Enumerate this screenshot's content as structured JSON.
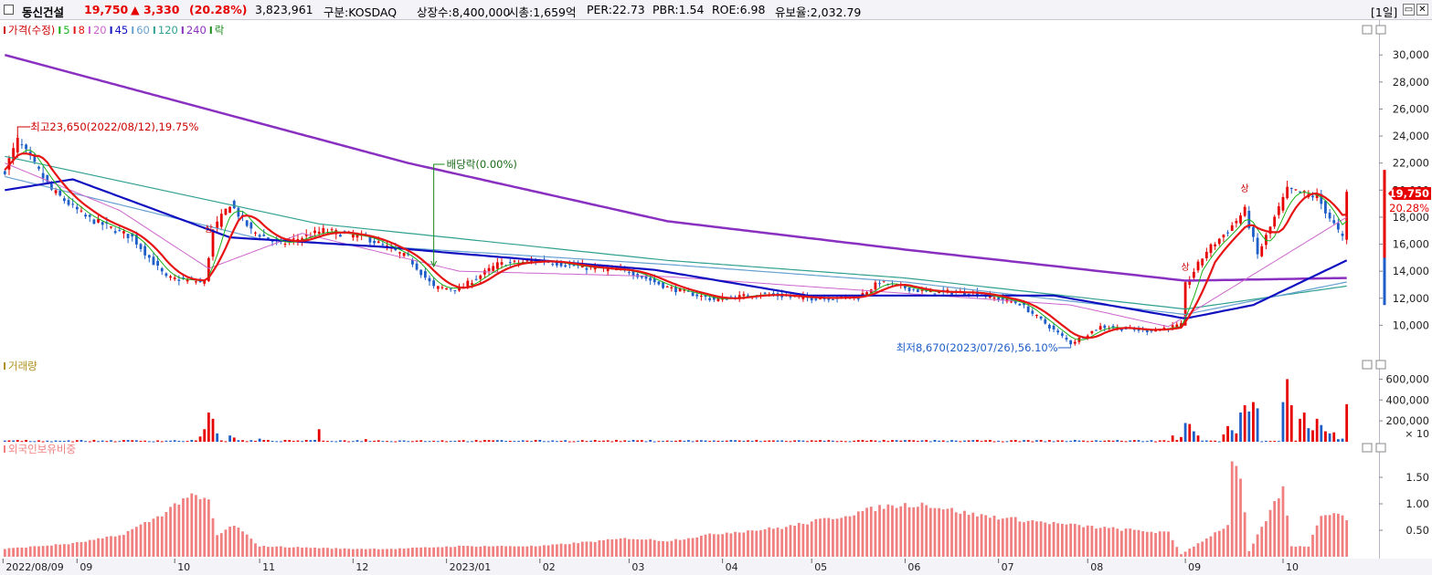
{
  "header": {
    "name": "동신건설",
    "price": "19,750",
    "change": "▲ 3,330",
    "change_pct": "(20.28%)",
    "volume": "3,823,961",
    "market": "구분:KOSDAQ",
    "shares": "상장수:8,400,000",
    "mcap": "시총:1,659억",
    "per": "PER:22.73",
    "pbr": "PBR:1.54",
    "roe": "ROE:6.98",
    "float": "유보율:2,032.79",
    "period": "[1일]",
    "btn_restore": "▭",
    "btn_close": "✕"
  },
  "colors": {
    "up": "#e60000",
    "down": "#1e5ec8",
    "ma5": "#1ab01a",
    "ma8": "#e61414",
    "ma20": "#cc66cc",
    "ma45": "#1010c0",
    "ma60": "#66a0d0",
    "ma120": "#30a090",
    "ma240": "#8a30c0",
    "volume_label": "#b09020",
    "foreign": "#f08080"
  },
  "chart_data": [
    {
      "type": "candlestick",
      "legend": [
        {
          "text": "가격(수정)",
          "color": "#cc0000"
        },
        {
          "text": "5",
          "color": "#1ab01a"
        },
        {
          "text": "8",
          "color": "#e61414"
        },
        {
          "text": "20",
          "color": "#cc66cc"
        },
        {
          "text": "45",
          "color": "#1010c0"
        },
        {
          "text": "60",
          "color": "#66a0d0"
        },
        {
          "text": "120",
          "color": "#30a090"
        },
        {
          "text": "240",
          "color": "#8a30c0"
        },
        {
          "text": "락",
          "color": "#1a8a1a"
        }
      ],
      "ylim": [
        8000,
        31500
      ],
      "y_ticks": [
        "10,000",
        "12,000",
        "14,000",
        "16,000",
        "18,000",
        "20,000",
        "22,000",
        "24,000",
        "26,000",
        "28,000",
        "30,000"
      ],
      "y_tick_values": [
        10000,
        12000,
        14000,
        16000,
        18000,
        20000,
        22000,
        24000,
        26000,
        28000,
        30000
      ],
      "price_label": "19,750",
      "pct_label": "20.28%",
      "annotations": {
        "high": "최고23,650(2022/08/12),19.75%",
        "low": "최저8,670(2023/07/26),56.10%",
        "dividend": "배당락(0.00%)",
        "upper_limit": "상",
        "upper_limit_2": "상",
        "upper_limit_3": "상"
      },
      "close_keypoints": [
        [
          "2022/08/09",
          21500
        ],
        [
          "2022/08/12",
          23650
        ],
        [
          "2022/08/24",
          20000
        ],
        [
          "2022/09/05",
          18000
        ],
        [
          "2022/09/20",
          16500
        ],
        [
          "2022/09/30",
          13500
        ],
        [
          "2022/10/13",
          13200
        ],
        [
          "2022/10/17",
          17000
        ],
        [
          "2022/10/21",
          19000
        ],
        [
          "2022/10/28",
          17000
        ],
        [
          "2022/11/08",
          16000
        ],
        [
          "2022/11/22",
          17000
        ],
        [
          "2022/12/06",
          16500
        ],
        [
          "2022/12/20",
          15000
        ],
        [
          "2022/12/28",
          12800
        ],
        [
          "2023/01/05",
          12700
        ],
        [
          "2023/01/18",
          14500
        ],
        [
          "2023/02/01",
          14800
        ],
        [
          "2023/02/15",
          14300
        ],
        [
          "2023/03/02",
          14000
        ],
        [
          "2023/03/15",
          12800
        ],
        [
          "2023/03/30",
          11900
        ],
        [
          "2023/04/14",
          12300
        ],
        [
          "2023/05/02",
          12000
        ],
        [
          "2023/05/17",
          12100
        ],
        [
          "2023/05/24",
          13200
        ],
        [
          "2023/06/07",
          12500
        ],
        [
          "2023/06/23",
          12400
        ],
        [
          "2023/07/10",
          11600
        ],
        [
          "2023/07/26",
          8670
        ],
        [
          "2023/08/04",
          9900
        ],
        [
          "2023/08/21",
          9600
        ],
        [
          "2023/08/31",
          10000
        ],
        [
          "2023/09/01",
          13000
        ],
        [
          "2023/09/08",
          15500
        ],
        [
          "2023/09/15",
          17000
        ],
        [
          "2023/09/21",
          18500
        ],
        [
          "2023/09/26",
          15200
        ],
        [
          "2023/10/05",
          20000
        ],
        [
          "2023/10/16",
          19500
        ],
        [
          "2023/10/24",
          16420
        ],
        [
          "2023/10/25",
          19750
        ]
      ],
      "ma_keypoints": {
        "ma240": [
          [
            "2022/08/09",
            30000
          ],
          [
            "2022/12/20",
            22000
          ],
          [
            "2023/03/15",
            17700
          ],
          [
            "2023/06/01",
            15600
          ],
          [
            "2023/09/01",
            13300
          ],
          [
            "2023/10/25",
            13500
          ]
        ],
        "ma120": [
          [
            "2022/08/09",
            22500
          ],
          [
            "2022/11/20",
            17500
          ],
          [
            "2023/03/15",
            14800
          ],
          [
            "2023/06/01",
            13500
          ],
          [
            "2023/09/01",
            11200
          ],
          [
            "2023/10/25",
            12900
          ]
        ],
        "ma60": [
          [
            "2022/08/09",
            21000
          ],
          [
            "2022/11/01",
            16400
          ],
          [
            "2023/03/15",
            14500
          ],
          [
            "2023/06/01",
            13200
          ],
          [
            "2023/09/01",
            10800
          ],
          [
            "2023/10/25",
            13200
          ]
        ],
        "ma45": [
          [
            "2022/08/09",
            20000
          ],
          [
            "2022/08/31",
            20800
          ],
          [
            "2022/10/21",
            16500
          ],
          [
            "2022/12/12",
            15800
          ],
          [
            "2023/01/05",
            15300
          ],
          [
            "2023/03/10",
            14100
          ],
          [
            "2023/05/01",
            12200
          ],
          [
            "2023/07/20",
            12200
          ],
          [
            "2023/09/01",
            10500
          ],
          [
            "2023/09/25",
            11500
          ],
          [
            "2023/10/25",
            14800
          ]
        ],
        "ma20": [
          [
            "2022/08/09",
            22000
          ],
          [
            "2022/09/15",
            18500
          ],
          [
            "2022/10/14",
            14200
          ],
          [
            "2022/11/15",
            16800
          ],
          [
            "2023/01/05",
            14000
          ],
          [
            "2023/03/15",
            13600
          ],
          [
            "2023/07/26",
            11500
          ],
          [
            "2023/08/28",
            9900
          ],
          [
            "2023/10/25",
            18000
          ]
        ]
      }
    },
    {
      "type": "bar",
      "title": "거래량",
      "ylim": [
        0,
        700000
      ],
      "y_ticks": [
        "200,000",
        "400,000",
        "600,000"
      ],
      "y_tick_values": [
        200000,
        400000,
        600000
      ],
      "unit_label": "× 10",
      "spikes": [
        [
          "2022/10/12",
          50000,
          "up"
        ],
        [
          "2022/10/13",
          120000,
          "up"
        ],
        [
          "2022/10/14",
          280000,
          "up"
        ],
        [
          "2022/10/17",
          220000,
          "up"
        ],
        [
          "2022/10/18",
          80000,
          "down"
        ],
        [
          "2022/10/21",
          60000,
          "down"
        ],
        [
          "2022/10/24",
          40000,
          "up"
        ],
        [
          "2022/11/01",
          30000,
          "down"
        ],
        [
          "2022/11/21",
          120000,
          "up"
        ],
        [
          "2022/12/06",
          25000,
          "up"
        ],
        [
          "2023/08/29",
          60000,
          "up"
        ],
        [
          "2023/08/31",
          45000,
          "up"
        ],
        [
          "2023/09/01",
          180000,
          "down"
        ],
        [
          "2023/09/04",
          170000,
          "up"
        ],
        [
          "2023/09/05",
          100000,
          "down"
        ],
        [
          "2023/09/06",
          60000,
          "up"
        ],
        [
          "2023/09/14",
          70000,
          "up"
        ],
        [
          "2023/09/15",
          150000,
          "up"
        ],
        [
          "2023/09/18",
          110000,
          "down"
        ],
        [
          "2023/09/19",
          80000,
          "up"
        ],
        [
          "2023/09/20",
          280000,
          "down"
        ],
        [
          "2023/09/21",
          350000,
          "up"
        ],
        [
          "2023/09/22",
          290000,
          "down"
        ],
        [
          "2023/09/25",
          380000,
          "up"
        ],
        [
          "2023/09/26",
          320000,
          "down"
        ],
        [
          "2023/10/04",
          380000,
          "down"
        ],
        [
          "2023/10/05",
          600000,
          "up"
        ],
        [
          "2023/10/06",
          350000,
          "up"
        ],
        [
          "2023/10/10",
          220000,
          "up"
        ],
        [
          "2023/10/11",
          280000,
          "up"
        ],
        [
          "2023/10/12",
          130000,
          "down"
        ],
        [
          "2023/10/13",
          110000,
          "up"
        ],
        [
          "2023/10/16",
          220000,
          "up"
        ],
        [
          "2023/10/17",
          160000,
          "down"
        ],
        [
          "2023/10/18",
          100000,
          "up"
        ],
        [
          "2023/10/19",
          80000,
          "down"
        ],
        [
          "2023/10/20",
          90000,
          "up"
        ],
        [
          "2023/10/23",
          25000,
          "down"
        ],
        [
          "2023/10/24",
          30000,
          "down"
        ],
        [
          "2023/10/25",
          360000,
          "up"
        ]
      ]
    },
    {
      "type": "bar",
      "title": "외국인보유비중",
      "ylim": [
        0,
        2.0
      ],
      "y_ticks": [
        "0.50",
        "1.00",
        "1.50"
      ],
      "y_tick_values": [
        0.5,
        1.0,
        1.5
      ],
      "keypoints": [
        [
          "2022/08/09",
          0.15
        ],
        [
          "2022/08/31",
          0.25
        ],
        [
          "2022/09/15",
          0.4
        ],
        [
          "2022/09/28",
          0.75
        ],
        [
          "2022/10/07",
          1.15
        ],
        [
          "2022/10/14",
          1.05
        ],
        [
          "2022/10/18",
          0.4
        ],
        [
          "2022/10/24",
          0.6
        ],
        [
          "2022/11/01",
          0.2
        ],
        [
          "2022/11/30",
          0.15
        ],
        [
          "2022/12/15",
          0.15
        ],
        [
          "2023/01/05",
          0.2
        ],
        [
          "2023/02/01",
          0.2
        ],
        [
          "2023/03/02",
          0.35
        ],
        [
          "2023/03/15",
          0.3
        ],
        [
          "2023/04/03",
          0.45
        ],
        [
          "2023/04/21",
          0.55
        ],
        [
          "2023/05/10",
          0.75
        ],
        [
          "2023/05/25",
          0.95
        ],
        [
          "2023/06/07",
          1.0
        ],
        [
          "2023/06/23",
          0.8
        ],
        [
          "2023/07/10",
          0.7
        ],
        [
          "2023/07/26",
          0.6
        ],
        [
          "2023/08/04",
          0.55
        ],
        [
          "2023/08/28",
          0.45
        ],
        [
          "2023/08/31",
          0.05
        ],
        [
          "2023/09/08",
          0.35
        ],
        [
          "2023/09/15",
          0.6
        ],
        [
          "2023/09/18",
          1.75
        ],
        [
          "2023/09/20",
          1.5
        ],
        [
          "2023/09/22",
          0.1
        ],
        [
          "2023/10/04",
          1.3
        ],
        [
          "2023/10/06",
          0.2
        ],
        [
          "2023/10/12",
          0.2
        ],
        [
          "2023/10/17",
          0.8
        ],
        [
          "2023/10/20",
          0.85
        ],
        [
          "2023/10/25",
          0.72
        ]
      ],
      "x_ticks": [
        "2022/08/09",
        "09",
        "10",
        "11",
        "12",
        "2023/01",
        "02",
        "03",
        "04",
        "05",
        "06",
        "07",
        "08",
        "09",
        "10"
      ],
      "x_tick_dates": [
        "2022/08/09",
        "2022/09/01",
        "2022/10/04",
        "2022/11/01",
        "2022/12/01",
        "2023/01/02",
        "2023/02/01",
        "2023/03/02",
        "2023/04/03",
        "2023/05/02",
        "2023/06/01",
        "2023/07/03",
        "2023/08/01",
        "2023/09/01",
        "2023/10/04"
      ]
    }
  ]
}
